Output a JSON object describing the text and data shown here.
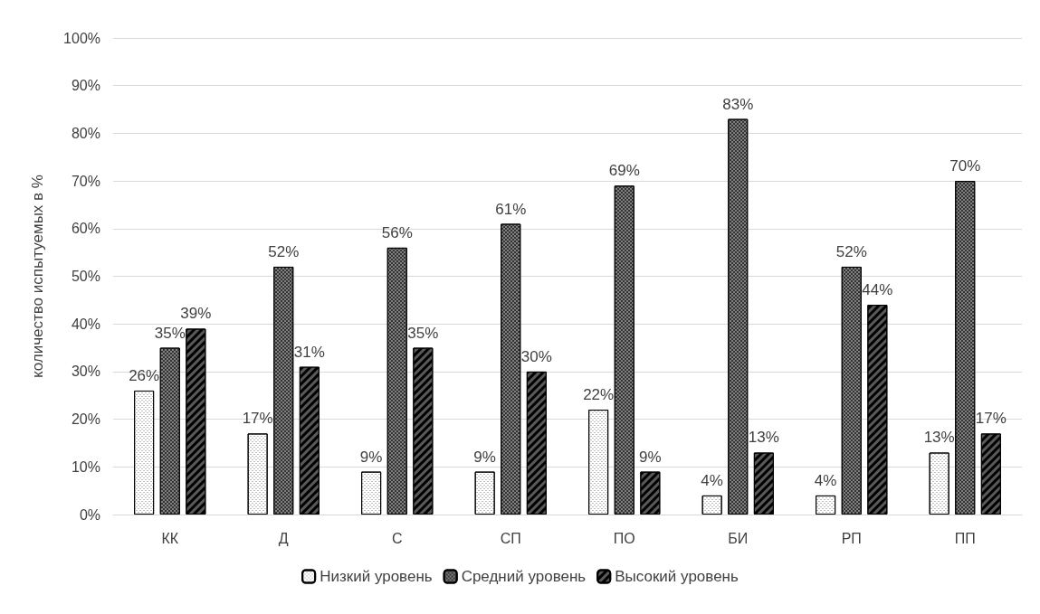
{
  "chart_data": {
    "type": "bar",
    "ylabel": "количество испытуемых в %",
    "categories": [
      "КК",
      "Д",
      "С",
      "СП",
      "ПО",
      "БИ",
      "РП",
      "ПП"
    ],
    "series": [
      {
        "name": "Низкий уровень",
        "color": "#ffffff",
        "values": [
          26,
          17,
          9,
          9,
          22,
          4,
          4,
          13
        ],
        "value_labels": [
          "26%",
          "17%",
          "9%",
          "9%",
          "22%",
          "4%",
          "4%",
          "13%"
        ]
      },
      {
        "name": "Средний уровень",
        "color": "#808080",
        "values": [
          35,
          52,
          56,
          61,
          69,
          83,
          52,
          70
        ],
        "value_labels": [
          "35%",
          "52%",
          "56%",
          "61%",
          "69%",
          "83%",
          "52%",
          "70%"
        ]
      },
      {
        "name": "Высокий уровень",
        "color": "#595959",
        "values": [
          39,
          31,
          35,
          30,
          9,
          13,
          44,
          17
        ],
        "value_labels": [
          "39%",
          "31%",
          "35%",
          "30%",
          "9%",
          "13%",
          "44%",
          "17%"
        ]
      }
    ],
    "ylim": [
      0,
      100
    ],
    "yticks": [
      {
        "value": 0,
        "label": "0%"
      },
      {
        "value": 10,
        "label": "10%"
      },
      {
        "value": 20,
        "label": "20%"
      },
      {
        "value": 30,
        "label": "30%"
      },
      {
        "value": 40,
        "label": "40%"
      },
      {
        "value": 50,
        "label": "50%"
      },
      {
        "value": 60,
        "label": "60%"
      },
      {
        "value": 70,
        "label": "70%"
      },
      {
        "value": 80,
        "label": "80%"
      },
      {
        "value": 90,
        "label": "90%"
      },
      {
        "value": 100,
        "label": "100%"
      }
    ],
    "grid": "y",
    "legend": "bottom"
  }
}
